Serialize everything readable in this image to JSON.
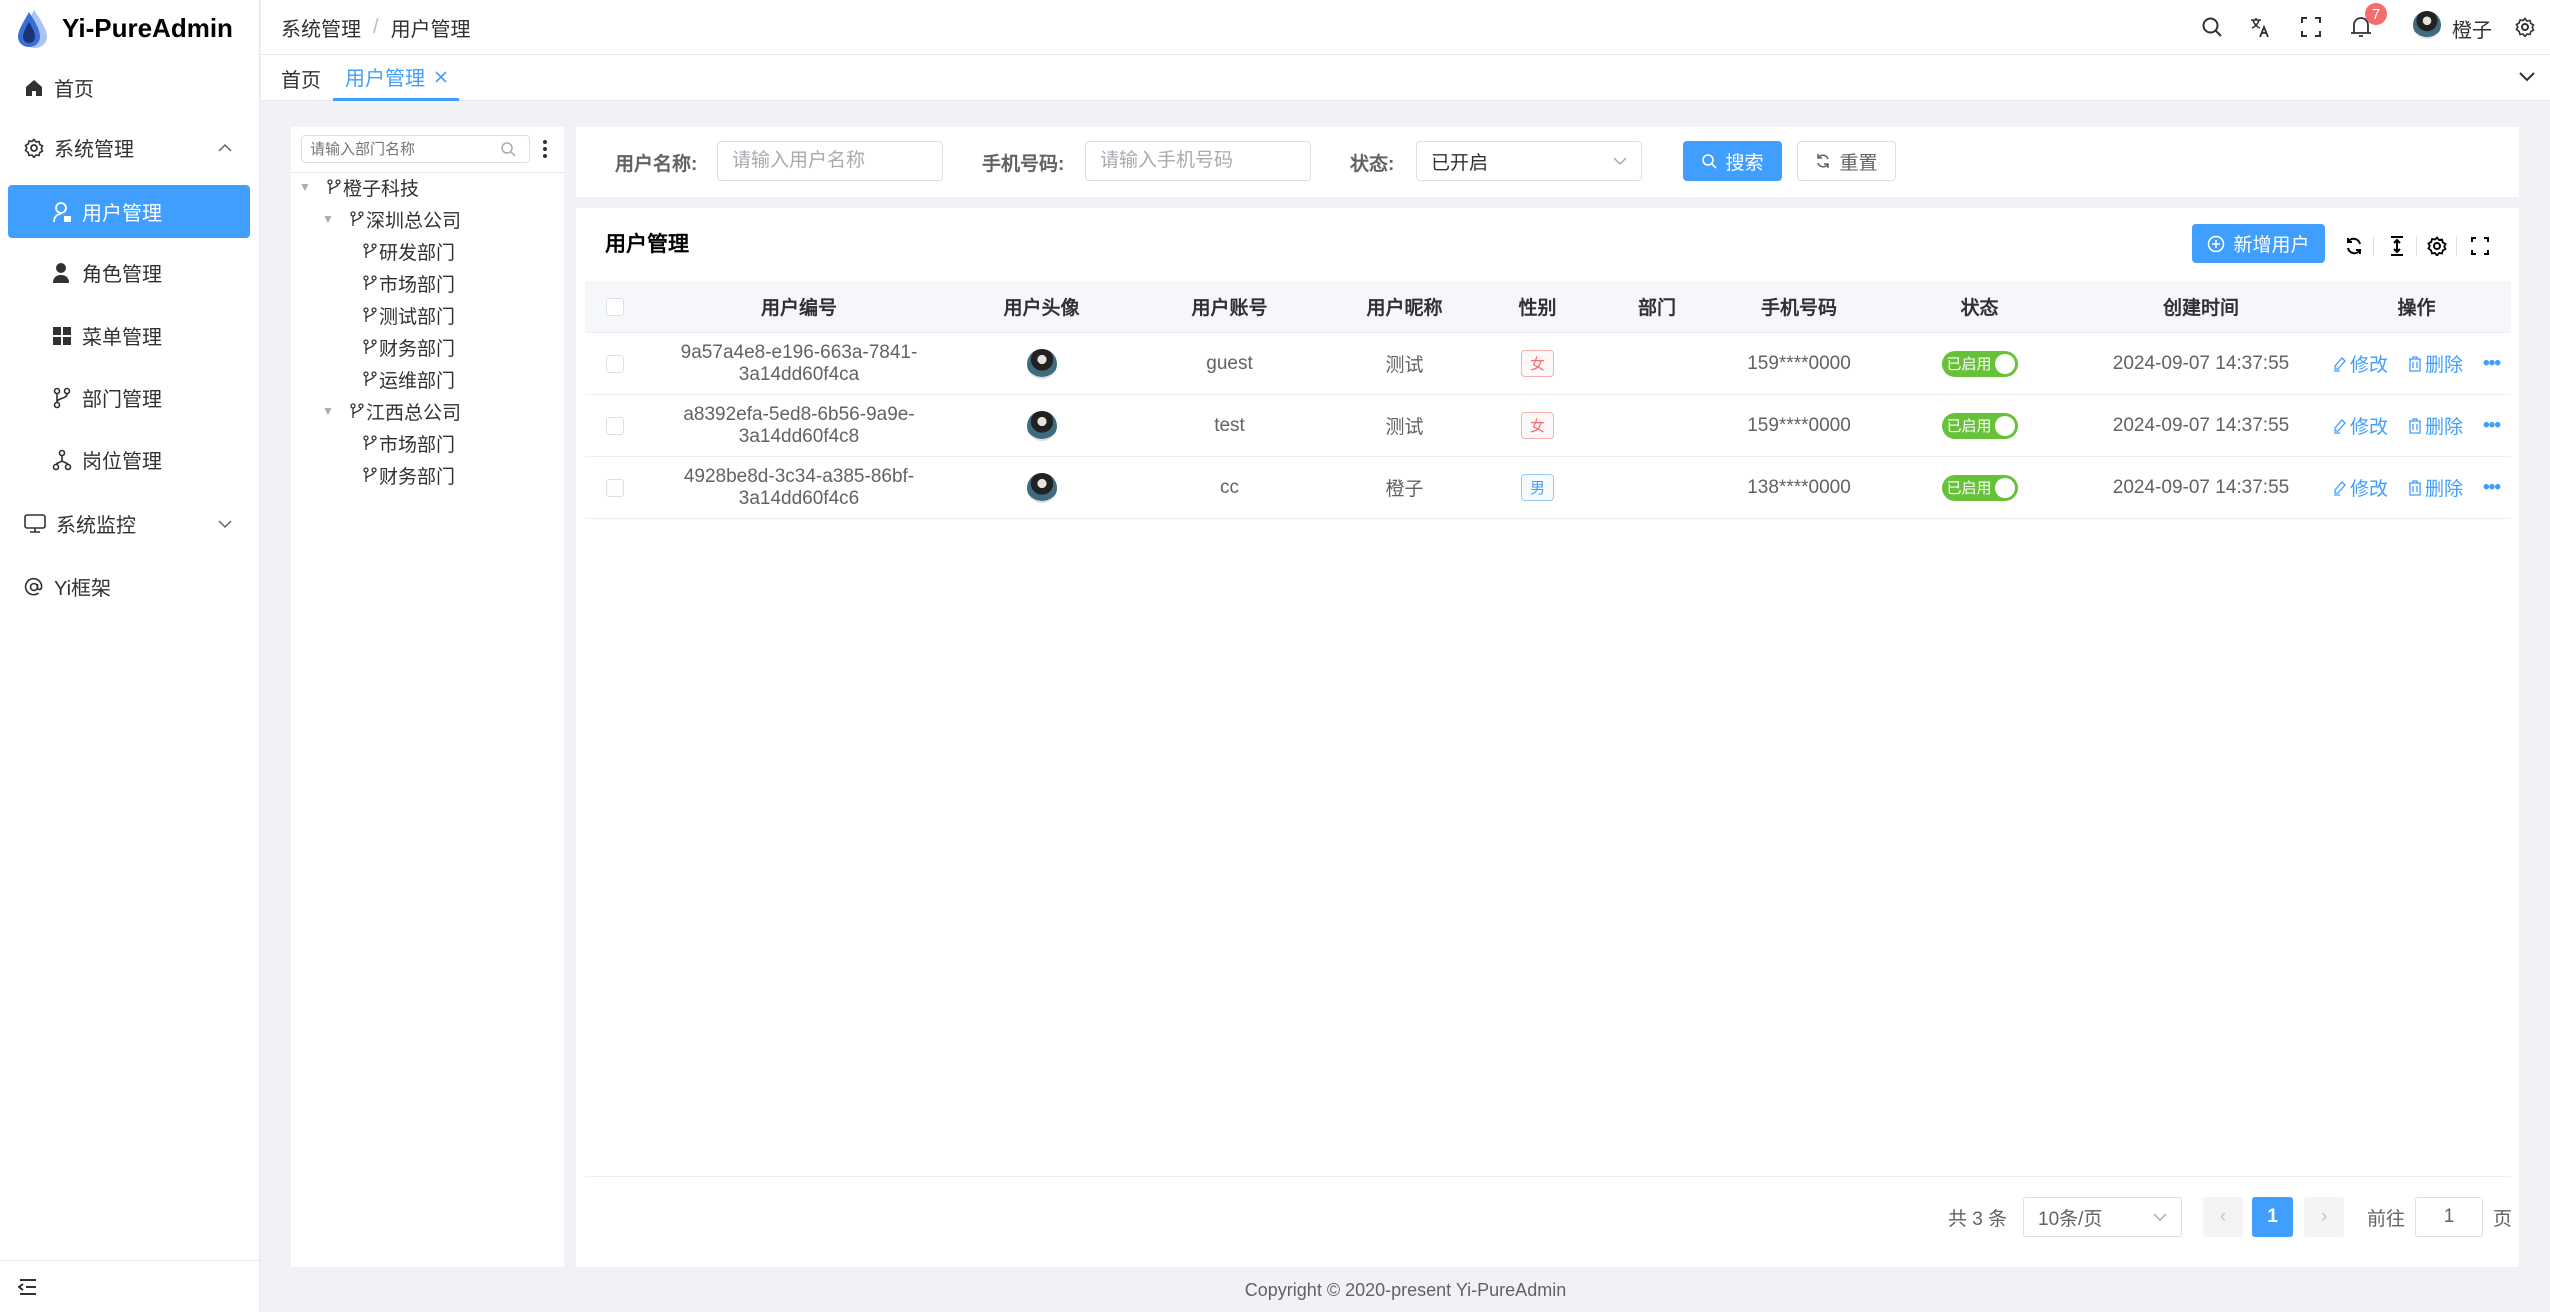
{
  "header": {
    "logo_text": "Yi-PureAdmin",
    "breadcrumb": [
      "系统管理",
      "用户管理"
    ],
    "notification_count": "7",
    "user_name": "橙子"
  },
  "tabs": [
    {
      "label": "首页"
    },
    {
      "label": "用户管理",
      "active": true
    }
  ],
  "sidebar": {
    "items": [
      {
        "label": "首页",
        "icon": "home-icon"
      },
      {
        "label": "系统管理",
        "icon": "gear-icon",
        "expanded": true
      },
      {
        "label": "用户管理",
        "icon": "user-icon",
        "active": true
      },
      {
        "label": "角色管理",
        "icon": "role-icon"
      },
      {
        "label": "菜单管理",
        "icon": "grid-icon"
      },
      {
        "label": "部门管理",
        "icon": "branch-icon"
      },
      {
        "label": "岗位管理",
        "icon": "org-icon"
      },
      {
        "label": "系统监控",
        "icon": "monitor-icon",
        "expanded": false
      },
      {
        "label": "Yi框架",
        "icon": "at-icon"
      }
    ]
  },
  "tree": {
    "placeholder": "请输入部门名称",
    "nodes": [
      {
        "label": "橙子科技",
        "level": 0,
        "expandable": true
      },
      {
        "label": "深圳总公司",
        "level": 1,
        "expandable": true
      },
      {
        "label": "研发部门",
        "level": 2
      },
      {
        "label": "市场部门",
        "level": 2
      },
      {
        "label": "测试部门",
        "level": 2
      },
      {
        "label": "财务部门",
        "level": 2
      },
      {
        "label": "运维部门",
        "level": 2
      },
      {
        "label": "江西总公司",
        "level": 1,
        "expandable": true
      },
      {
        "label": "市场部门",
        "level": 2
      },
      {
        "label": "财务部门",
        "level": 2
      }
    ]
  },
  "search": {
    "username_label": "用户名称:",
    "username_placeholder": "请输入用户名称",
    "phone_label": "手机号码:",
    "phone_placeholder": "请输入手机号码",
    "status_label": "状态:",
    "status_value": "已开启",
    "search_label": "搜索",
    "reset_label": "重置"
  },
  "table": {
    "title": "用户管理",
    "add_label": "新增用户",
    "columns": [
      "用户编号",
      "用户头像",
      "用户账号",
      "用户昵称",
      "性别",
      "部门",
      "手机号码",
      "状态",
      "创建时间",
      "操作"
    ],
    "edit_label": "修改",
    "delete_label": "删除",
    "rows": [
      {
        "id": "9a57a4e8-e196-663a-7841-3a14dd60f4ca",
        "account": "guest",
        "nickname": "测试",
        "gender": "女",
        "dept": "",
        "phone": "159****0000",
        "status": "已启用",
        "created": "2024-09-07 14:37:55"
      },
      {
        "id": "a8392efa-5ed8-6b56-9a9e-3a14dd60f4c8",
        "account": "test",
        "nickname": "测试",
        "gender": "女",
        "dept": "",
        "phone": "159****0000",
        "status": "已启用",
        "created": "2024-09-07 14:37:55"
      },
      {
        "id": "4928be8d-3c34-a385-86bf-3a14dd60f4c6",
        "account": "cc",
        "nickname": "橙子",
        "gender": "男",
        "dept": "",
        "phone": "138****0000",
        "status": "已启用",
        "created": "2024-09-07 14:37:55"
      }
    ]
  },
  "pagination": {
    "total_text": "共 3 条",
    "page_size": "10条/页",
    "current_page": "1",
    "goto_label": "前往",
    "goto_value": "1",
    "page_unit": "页"
  },
  "footer": {
    "copyright": "Copyright © 2020-present Yi-PureAdmin"
  },
  "colors": {
    "primary": "#409eff",
    "success": "#67c23a",
    "female": "#f56c6c",
    "male": "#409eff"
  }
}
